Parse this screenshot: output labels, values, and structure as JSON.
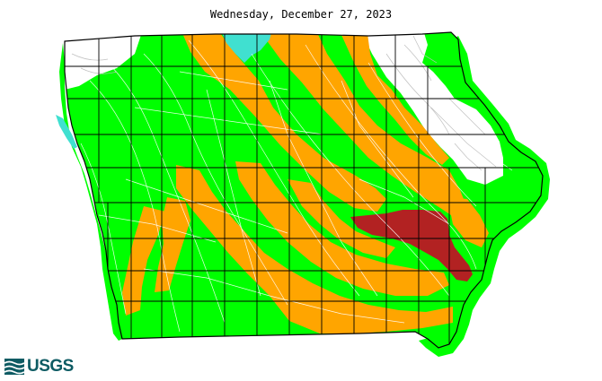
{
  "map": {
    "title": "Wednesday, December 27, 2023",
    "region": "Iowa",
    "colors": {
      "low": "#ffa500",
      "much_below_normal": "#b22222",
      "normal": "#00ff00",
      "high": "#40e0d0",
      "not_ranked": "#ffffff",
      "county_border": "#000000",
      "streams": "#ffffff",
      "non_ranked_streams": "#c0c0c0"
    }
  },
  "logo": {
    "text": "USGS",
    "name": "usgs-logo"
  }
}
